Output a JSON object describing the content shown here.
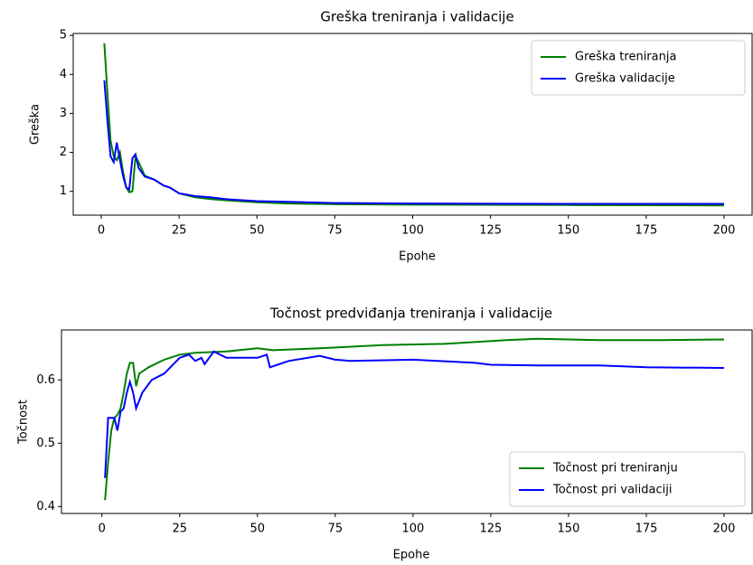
{
  "chart_data": [
    {
      "type": "line",
      "title": "Greška treniranja i validacije",
      "xlabel": "Epohe",
      "ylabel": "Greška",
      "xlim": [
        -9,
        209
      ],
      "ylim": [
        0.39,
        5.05
      ],
      "xticks": [
        0,
        25,
        50,
        75,
        100,
        125,
        150,
        175,
        200
      ],
      "yticks": [
        1,
        2,
        3,
        4,
        5
      ],
      "legend": "upper right",
      "series": [
        {
          "name": "Greška treniranja",
          "color": "#008000",
          "x": [
            1,
            2,
            3,
            4,
            5,
            6,
            7,
            8,
            9,
            10,
            11,
            12,
            14,
            17,
            20,
            22,
            25,
            30,
            35,
            40,
            50,
            60,
            75,
            100,
            150,
            200
          ],
          "values": [
            4.8,
            3.5,
            2.3,
            1.9,
            1.8,
            2.0,
            1.5,
            1.1,
            0.98,
            1.0,
            1.9,
            1.75,
            1.4,
            1.3,
            1.15,
            1.1,
            0.95,
            0.85,
            0.8,
            0.77,
            0.72,
            0.69,
            0.67,
            0.66,
            0.65,
            0.64
          ]
        },
        {
          "name": "Greška validacije",
          "color": "#0000ff",
          "x": [
            1,
            2,
            3,
            4,
            5,
            6,
            7,
            8,
            9,
            10,
            11,
            12,
            14,
            17,
            20,
            22,
            25,
            30,
            35,
            40,
            50,
            60,
            75,
            100,
            150,
            200
          ],
          "values": [
            3.85,
            2.8,
            1.9,
            1.75,
            2.25,
            1.8,
            1.4,
            1.1,
            1.05,
            1.85,
            1.95,
            1.6,
            1.38,
            1.3,
            1.15,
            1.1,
            0.95,
            0.88,
            0.85,
            0.8,
            0.75,
            0.73,
            0.7,
            0.69,
            0.68,
            0.68
          ]
        }
      ]
    },
    {
      "type": "line",
      "title": "Točnost predviđanja treniranja i validacije",
      "xlabel": "Epohe",
      "ylabel": "Točnost",
      "xlim": [
        -13,
        209
      ],
      "ylim": [
        0.389,
        0.679
      ],
      "xticks": [
        0,
        25,
        50,
        75,
        100,
        125,
        150,
        175,
        200
      ],
      "yticks": [
        0.4,
        0.5,
        0.6
      ],
      "legend": "lower right",
      "series": [
        {
          "name": "Točnost pri treniranju",
          "color": "#008000",
          "x": [
            1,
            2,
            3,
            4,
            5,
            6,
            7,
            8,
            9,
            10,
            11,
            12,
            15,
            20,
            25,
            30,
            40,
            50,
            55,
            70,
            90,
            110,
            130,
            140,
            160,
            180,
            200
          ],
          "values": [
            0.41,
            0.47,
            0.52,
            0.54,
            0.545,
            0.555,
            0.58,
            0.61,
            0.627,
            0.627,
            0.59,
            0.61,
            0.62,
            0.632,
            0.64,
            0.643,
            0.645,
            0.65,
            0.647,
            0.65,
            0.655,
            0.657,
            0.663,
            0.665,
            0.663,
            0.663,
            0.664
          ]
        },
        {
          "name": "Točnost pri validaciji",
          "color": "#0000ff",
          "x": [
            1,
            2,
            3,
            4,
            5,
            6,
            7,
            8,
            9,
            10,
            11,
            13,
            16,
            20,
            25,
            28,
            30,
            32,
            33,
            36,
            40,
            50,
            53,
            54,
            60,
            70,
            75,
            80,
            100,
            120,
            125,
            140,
            160,
            175,
            200
          ],
          "values": [
            0.445,
            0.54,
            0.54,
            0.54,
            0.52,
            0.55,
            0.555,
            0.58,
            0.597,
            0.58,
            0.555,
            0.58,
            0.6,
            0.61,
            0.635,
            0.64,
            0.63,
            0.635,
            0.625,
            0.645,
            0.635,
            0.635,
            0.64,
            0.62,
            0.63,
            0.638,
            0.632,
            0.63,
            0.632,
            0.627,
            0.624,
            0.623,
            0.623,
            0.62,
            0.619
          ]
        }
      ]
    }
  ]
}
